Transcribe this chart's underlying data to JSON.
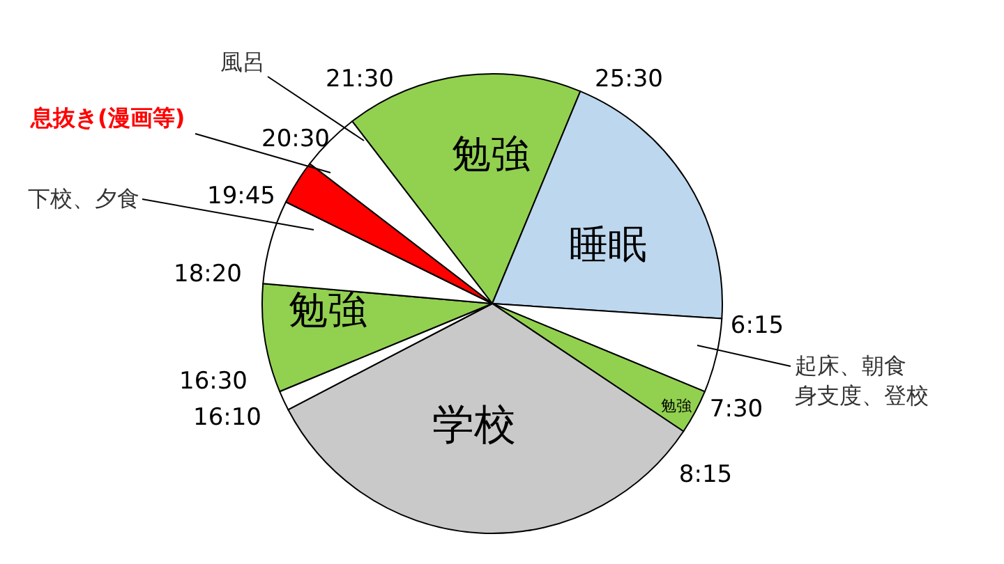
{
  "chart_data": {
    "type": "pie",
    "categories": [
      "勉強",
      "睡眠",
      "起床、朝食身支度、登校",
      "勉強",
      "学校",
      null,
      "勉強",
      "下校、夕食",
      "息抜き(漫画等)",
      "風呂"
    ],
    "values": [
      16.67,
      19.79,
      5.21,
      3.13,
      32.98,
      1.39,
      7.64,
      5.9,
      3.13,
      4.16
    ],
    "colors": [
      "#92d050",
      "#bdd7ee",
      "#ffffff",
      "#92d050",
      "#c9c9c9",
      "#ffffff",
      "#92d050",
      "#ffffff",
      "#ff0000",
      "#ffffff"
    ],
    "annotations": [
      "21:30",
      "25:30",
      "6:15",
      "7:30",
      "8:15",
      "16:10",
      "16:30",
      "18:20",
      "19:45",
      "20:30"
    ]
  }
}
